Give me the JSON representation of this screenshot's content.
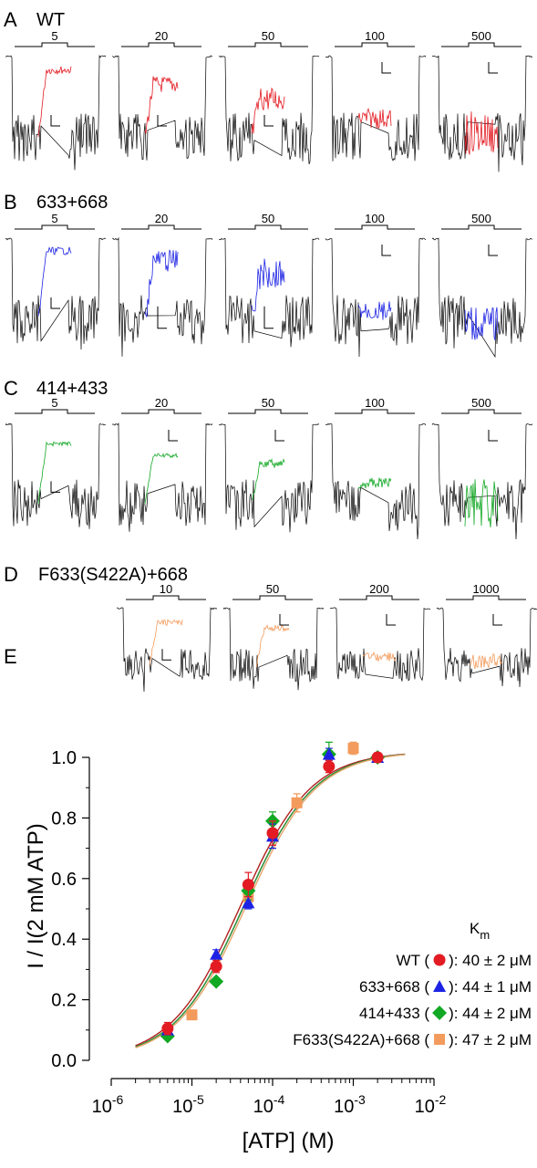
{
  "figure": {
    "trace_panels": [
      {
        "letter": "A",
        "label": "WT",
        "color": "#e31b23",
        "traces": [
          {
            "conc": "5",
            "level": 0.12,
            "noise": 0.07,
            "scale": "mid"
          },
          {
            "conc": "20",
            "level": 0.3,
            "noise": 0.15,
            "scale": "mid"
          },
          {
            "conc": "50",
            "level": 0.48,
            "noise": 0.22,
            "scale": "mid"
          },
          {
            "conc": "100",
            "level": 0.72,
            "noise": 0.18,
            "scale": "topright"
          },
          {
            "conc": "500",
            "level": 0.9,
            "noise": 0.4,
            "scale": "topright"
          }
        ]
      },
      {
        "letter": "B",
        "label": "633+668",
        "color": "#1d23e3",
        "traces": [
          {
            "conc": "5",
            "level": 0.1,
            "noise": 0.07,
            "scale": "mid"
          },
          {
            "conc": "20",
            "level": 0.22,
            "noise": 0.2,
            "scale": "low"
          },
          {
            "conc": "50",
            "level": 0.38,
            "noise": 0.28,
            "scale": "low"
          },
          {
            "conc": "100",
            "level": 0.85,
            "noise": 0.18,
            "scale": "topright"
          },
          {
            "conc": "500",
            "level": 1.0,
            "noise": 0.3,
            "scale": "topright"
          }
        ]
      },
      {
        "letter": "C",
        "label": "414+433",
        "color": "#11a823",
        "traces": [
          {
            "conc": "5",
            "level": 0.2,
            "noise": 0.04,
            "scale": "mid"
          },
          {
            "conc": "20",
            "level": 0.35,
            "noise": 0.04,
            "scale": "topright"
          },
          {
            "conc": "50",
            "level": 0.45,
            "noise": 0.08,
            "scale": "topright"
          },
          {
            "conc": "100",
            "level": 0.7,
            "noise": 0.1,
            "scale": "none"
          },
          {
            "conc": "500",
            "level": 0.95,
            "noise": 0.45,
            "scale": "topright"
          }
        ]
      },
      {
        "letter": "D",
        "label": "F633(S422A)+668",
        "color": "#f39b5c",
        "traces": [
          {
            "conc": "10",
            "level": 0.18,
            "noise": 0.08,
            "scale": "mid"
          },
          {
            "conc": "50",
            "level": 0.28,
            "noise": 0.08,
            "scale": "topright"
          },
          {
            "conc": "200",
            "level": 0.8,
            "noise": 0.12,
            "scale": "topright"
          },
          {
            "conc": "1000",
            "level": 0.88,
            "noise": 0.2,
            "scale": "topright"
          }
        ]
      }
    ]
  },
  "chart_data": {
    "type": "scatter",
    "letter": "E",
    "xlabel": "[ATP] (M)",
    "ylabel": "I / I(2 mM ATP)",
    "x_scale": "log",
    "xlim": [
      1e-06,
      0.01
    ],
    "ylim": [
      0.0,
      1.0
    ],
    "x_tick_base": "10",
    "x_tick_exponents": [
      "-6",
      "-5",
      "-4",
      "-3",
      "-2"
    ],
    "y_ticks": [
      "0.0",
      "0.2",
      "0.4",
      "0.6",
      "0.8",
      "1.0"
    ],
    "legend_title": "K",
    "legend_title_sub": "m",
    "legend_position": "bottom-right",
    "series": [
      {
        "name": "WT",
        "km": "40 ± 2 μM",
        "km_M": 4e-05,
        "marker": "circle",
        "color": "#e31b23",
        "curve_color": "#b0201e",
        "x": [
          5e-06,
          2e-05,
          5e-05,
          0.0001,
          0.0005,
          0.002
        ],
        "y": [
          0.105,
          0.31,
          0.58,
          0.75,
          0.97,
          1.0
        ],
        "err": [
          0.02,
          0.02,
          0.04,
          0.04,
          0.02,
          0.015
        ]
      },
      {
        "name": "633+668",
        "km": "44 ± 1 μM",
        "km_M": 4.4e-05,
        "marker": "triangle",
        "color": "#1d23e3",
        "curve_color": "#2a2ac8",
        "x": [
          5e-06,
          2e-05,
          5e-05,
          0.0001,
          0.0005,
          0.002
        ],
        "y": [
          0.1,
          0.35,
          0.52,
          0.74,
          1.01,
          1.0
        ],
        "err": [
          0.015,
          0.015,
          0.02,
          0.04,
          0.02,
          0.01
        ]
      },
      {
        "name": "414+433",
        "km": "44 ± 2 μM",
        "km_M": 4.4e-05,
        "marker": "diamond",
        "color": "#11a823",
        "curve_color": "#2f9a2f",
        "x": [
          5e-06,
          2e-05,
          5e-05,
          0.0001,
          0.0005,
          0.002
        ],
        "y": [
          0.08,
          0.26,
          0.56,
          0.79,
          1.01,
          1.0
        ],
        "err": [
          0.01,
          0.01,
          0.03,
          0.03,
          0.04,
          0.01
        ]
      },
      {
        "name": "F633(S422A)+668",
        "km": "47 ± 2 μM",
        "km_M": 4.7e-05,
        "marker": "square",
        "color": "#f39b5c",
        "curve_color": "#e8a56a",
        "x": [
          1e-05,
          5e-05,
          0.0002,
          0.001
        ],
        "y": [
          0.15,
          0.54,
          0.85,
          1.03
        ],
        "err": [
          0.01,
          0.03,
          0.03,
          0.02
        ]
      }
    ]
  }
}
